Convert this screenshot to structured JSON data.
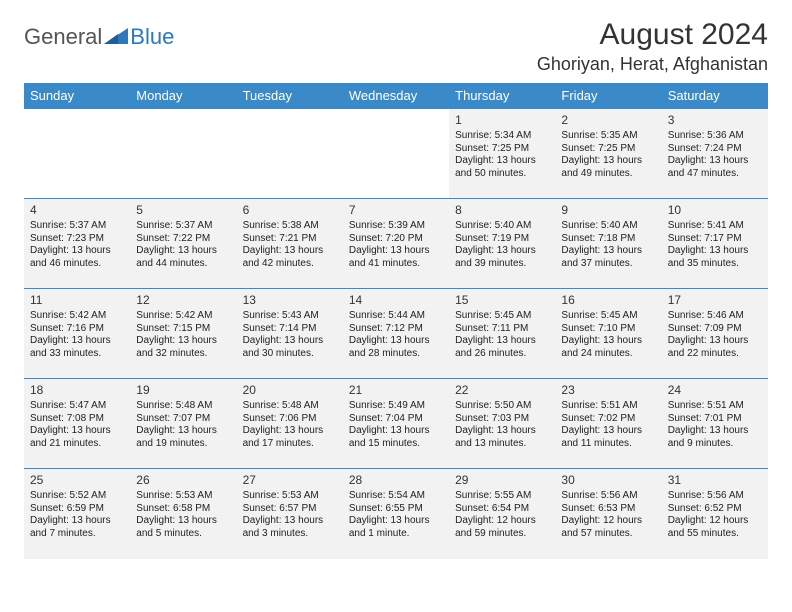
{
  "logo": {
    "general": "General",
    "blue": "Blue"
  },
  "header": {
    "title": "August 2024",
    "location": "Ghoriyan, Herat, Afghanistan"
  },
  "colors": {
    "header_bg": "#3a8ac9",
    "header_text": "#ffffff",
    "row_bg": "#f2f2f2",
    "row_border": "#3a8ac9",
    "text": "#222222",
    "logo_gray": "#555555",
    "logo_blue": "#2e77bd"
  },
  "weekdays": [
    "Sunday",
    "Monday",
    "Tuesday",
    "Wednesday",
    "Thursday",
    "Friday",
    "Saturday"
  ],
  "weeks": [
    [
      null,
      null,
      null,
      null,
      {
        "n": "1",
        "sr": "Sunrise: 5:34 AM",
        "ss": "Sunset: 7:25 PM",
        "dl": "Daylight: 13 hours and 50 minutes."
      },
      {
        "n": "2",
        "sr": "Sunrise: 5:35 AM",
        "ss": "Sunset: 7:25 PM",
        "dl": "Daylight: 13 hours and 49 minutes."
      },
      {
        "n": "3",
        "sr": "Sunrise: 5:36 AM",
        "ss": "Sunset: 7:24 PM",
        "dl": "Daylight: 13 hours and 47 minutes."
      }
    ],
    [
      {
        "n": "4",
        "sr": "Sunrise: 5:37 AM",
        "ss": "Sunset: 7:23 PM",
        "dl": "Daylight: 13 hours and 46 minutes."
      },
      {
        "n": "5",
        "sr": "Sunrise: 5:37 AM",
        "ss": "Sunset: 7:22 PM",
        "dl": "Daylight: 13 hours and 44 minutes."
      },
      {
        "n": "6",
        "sr": "Sunrise: 5:38 AM",
        "ss": "Sunset: 7:21 PM",
        "dl": "Daylight: 13 hours and 42 minutes."
      },
      {
        "n": "7",
        "sr": "Sunrise: 5:39 AM",
        "ss": "Sunset: 7:20 PM",
        "dl": "Daylight: 13 hours and 41 minutes."
      },
      {
        "n": "8",
        "sr": "Sunrise: 5:40 AM",
        "ss": "Sunset: 7:19 PM",
        "dl": "Daylight: 13 hours and 39 minutes."
      },
      {
        "n": "9",
        "sr": "Sunrise: 5:40 AM",
        "ss": "Sunset: 7:18 PM",
        "dl": "Daylight: 13 hours and 37 minutes."
      },
      {
        "n": "10",
        "sr": "Sunrise: 5:41 AM",
        "ss": "Sunset: 7:17 PM",
        "dl": "Daylight: 13 hours and 35 minutes."
      }
    ],
    [
      {
        "n": "11",
        "sr": "Sunrise: 5:42 AM",
        "ss": "Sunset: 7:16 PM",
        "dl": "Daylight: 13 hours and 33 minutes."
      },
      {
        "n": "12",
        "sr": "Sunrise: 5:42 AM",
        "ss": "Sunset: 7:15 PM",
        "dl": "Daylight: 13 hours and 32 minutes."
      },
      {
        "n": "13",
        "sr": "Sunrise: 5:43 AM",
        "ss": "Sunset: 7:14 PM",
        "dl": "Daylight: 13 hours and 30 minutes."
      },
      {
        "n": "14",
        "sr": "Sunrise: 5:44 AM",
        "ss": "Sunset: 7:12 PM",
        "dl": "Daylight: 13 hours and 28 minutes."
      },
      {
        "n": "15",
        "sr": "Sunrise: 5:45 AM",
        "ss": "Sunset: 7:11 PM",
        "dl": "Daylight: 13 hours and 26 minutes."
      },
      {
        "n": "16",
        "sr": "Sunrise: 5:45 AM",
        "ss": "Sunset: 7:10 PM",
        "dl": "Daylight: 13 hours and 24 minutes."
      },
      {
        "n": "17",
        "sr": "Sunrise: 5:46 AM",
        "ss": "Sunset: 7:09 PM",
        "dl": "Daylight: 13 hours and 22 minutes."
      }
    ],
    [
      {
        "n": "18",
        "sr": "Sunrise: 5:47 AM",
        "ss": "Sunset: 7:08 PM",
        "dl": "Daylight: 13 hours and 21 minutes."
      },
      {
        "n": "19",
        "sr": "Sunrise: 5:48 AM",
        "ss": "Sunset: 7:07 PM",
        "dl": "Daylight: 13 hours and 19 minutes."
      },
      {
        "n": "20",
        "sr": "Sunrise: 5:48 AM",
        "ss": "Sunset: 7:06 PM",
        "dl": "Daylight: 13 hours and 17 minutes."
      },
      {
        "n": "21",
        "sr": "Sunrise: 5:49 AM",
        "ss": "Sunset: 7:04 PM",
        "dl": "Daylight: 13 hours and 15 minutes."
      },
      {
        "n": "22",
        "sr": "Sunrise: 5:50 AM",
        "ss": "Sunset: 7:03 PM",
        "dl": "Daylight: 13 hours and 13 minutes."
      },
      {
        "n": "23",
        "sr": "Sunrise: 5:51 AM",
        "ss": "Sunset: 7:02 PM",
        "dl": "Daylight: 13 hours and 11 minutes."
      },
      {
        "n": "24",
        "sr": "Sunrise: 5:51 AM",
        "ss": "Sunset: 7:01 PM",
        "dl": "Daylight: 13 hours and 9 minutes."
      }
    ],
    [
      {
        "n": "25",
        "sr": "Sunrise: 5:52 AM",
        "ss": "Sunset: 6:59 PM",
        "dl": "Daylight: 13 hours and 7 minutes."
      },
      {
        "n": "26",
        "sr": "Sunrise: 5:53 AM",
        "ss": "Sunset: 6:58 PM",
        "dl": "Daylight: 13 hours and 5 minutes."
      },
      {
        "n": "27",
        "sr": "Sunrise: 5:53 AM",
        "ss": "Sunset: 6:57 PM",
        "dl": "Daylight: 13 hours and 3 minutes."
      },
      {
        "n": "28",
        "sr": "Sunrise: 5:54 AM",
        "ss": "Sunset: 6:55 PM",
        "dl": "Daylight: 13 hours and 1 minute."
      },
      {
        "n": "29",
        "sr": "Sunrise: 5:55 AM",
        "ss": "Sunset: 6:54 PM",
        "dl": "Daylight: 12 hours and 59 minutes."
      },
      {
        "n": "30",
        "sr": "Sunrise: 5:56 AM",
        "ss": "Sunset: 6:53 PM",
        "dl": "Daylight: 12 hours and 57 minutes."
      },
      {
        "n": "31",
        "sr": "Sunrise: 5:56 AM",
        "ss": "Sunset: 6:52 PM",
        "dl": "Daylight: 12 hours and 55 minutes."
      }
    ]
  ]
}
